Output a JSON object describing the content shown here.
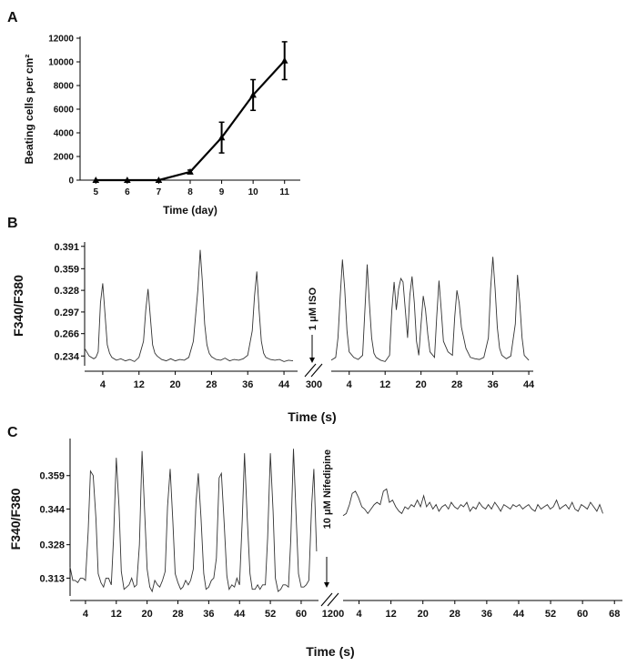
{
  "chart_data": [
    {
      "panel": "A",
      "type": "line",
      "xlabel": "Time (day)",
      "ylabel": "Beating cells per cm²",
      "x": [
        5,
        6,
        7,
        8,
        9,
        10,
        11
      ],
      "series": [
        {
          "values": [
            0,
            0,
            0,
            700,
            3600,
            7200,
            10100
          ],
          "error": [
            0,
            0,
            0,
            150,
            1300,
            1300,
            1600
          ]
        }
      ],
      "xticks": [
        "5",
        "6",
        "7",
        "8",
        "9",
        "10",
        "11"
      ],
      "yticks": [
        "0",
        "2000",
        "4000",
        "6000",
        "8000",
        "10000",
        "12000"
      ],
      "ylim": [
        0,
        12000
      ],
      "xlim": [
        4.5,
        11.5
      ],
      "grid": false
    },
    {
      "panel": "B",
      "type": "line",
      "xlabel": "Time (s)",
      "ylabel": "F340/F380",
      "yticks": [
        "0.234",
        "0.266",
        "0.297",
        "0.328",
        "0.359",
        "0.391"
      ],
      "ylim": [
        0.22,
        0.392
      ],
      "annotation": "1 μM ISO",
      "break_label": "300",
      "segments": [
        {
          "xlim": [
            0,
            47
          ],
          "xticks": [
            "4",
            "12",
            "20",
            "28",
            "36",
            "44"
          ],
          "x": [
            0,
            1,
            2,
            2.5,
            3,
            3.5,
            4,
            5,
            5.5,
            6,
            7,
            8,
            9,
            10,
            11,
            12,
            13,
            13.5,
            14,
            14.5,
            15,
            15.5,
            16,
            17,
            18,
            19,
            20,
            21,
            22,
            23,
            24,
            25,
            25.5,
            26,
            26.5,
            27,
            27.5,
            28,
            29,
            30,
            31,
            32,
            33,
            34,
            35,
            36,
            37,
            37.5,
            38,
            38.5,
            39,
            39.5,
            40,
            41,
            42,
            43,
            44,
            45,
            46
          ],
          "values": [
            0.245,
            0.234,
            0.23,
            0.232,
            0.24,
            0.31,
            0.338,
            0.25,
            0.238,
            0.232,
            0.228,
            0.23,
            0.227,
            0.229,
            0.226,
            0.232,
            0.255,
            0.3,
            0.33,
            0.29,
            0.25,
            0.238,
            0.234,
            0.229,
            0.227,
            0.23,
            0.227,
            0.229,
            0.228,
            0.232,
            0.255,
            0.33,
            0.386,
            0.34,
            0.28,
            0.25,
            0.238,
            0.233,
            0.229,
            0.228,
            0.231,
            0.227,
            0.229,
            0.228,
            0.23,
            0.235,
            0.27,
            0.32,
            0.355,
            0.3,
            0.255,
            0.238,
            0.232,
            0.229,
            0.228,
            0.229,
            0.226,
            0.228,
            0.227
          ]
        },
        {
          "xlim": [
            0,
            45
          ],
          "xticks": [
            "4",
            "12",
            "20",
            "28",
            "36",
            "44"
          ],
          "x": [
            0,
            1,
            1.5,
            2,
            2.5,
            3,
            3.5,
            4,
            5,
            6,
            7,
            7.5,
            8,
            8.5,
            9,
            9.5,
            10,
            11,
            12,
            13,
            13.5,
            14,
            14.5,
            15,
            15.5,
            16,
            16.5,
            17,
            17.5,
            18,
            18.5,
            19,
            19.5,
            20,
            20.5,
            21,
            21.5,
            22,
            23,
            23.5,
            24,
            24.5,
            25,
            26,
            27,
            27.5,
            28,
            28.5,
            29,
            30,
            31,
            32,
            33,
            34,
            35,
            35.5,
            36,
            36.5,
            37,
            37.5,
            38,
            39,
            40,
            41,
            41.5,
            42,
            42.5,
            43,
            44
          ],
          "values": [
            0.228,
            0.232,
            0.26,
            0.32,
            0.372,
            0.33,
            0.27,
            0.24,
            0.232,
            0.229,
            0.235,
            0.3,
            0.365,
            0.31,
            0.26,
            0.238,
            0.232,
            0.228,
            0.226,
            0.235,
            0.3,
            0.34,
            0.3,
            0.33,
            0.345,
            0.34,
            0.3,
            0.26,
            0.32,
            0.348,
            0.31,
            0.255,
            0.235,
            0.28,
            0.32,
            0.3,
            0.265,
            0.24,
            0.232,
            0.29,
            0.342,
            0.3,
            0.255,
            0.24,
            0.235,
            0.29,
            0.328,
            0.31,
            0.275,
            0.245,
            0.232,
            0.23,
            0.229,
            0.232,
            0.26,
            0.33,
            0.376,
            0.33,
            0.275,
            0.245,
            0.235,
            0.23,
            0.234,
            0.28,
            0.35,
            0.31,
            0.26,
            0.235,
            0.228
          ]
        }
      ]
    },
    {
      "panel": "C",
      "type": "line",
      "xlabel": "Time (s)",
      "ylabel": "F340/F380",
      "yticks": [
        "0.313",
        "0.328",
        "0.344",
        "0.359"
      ],
      "ylim": [
        0.305,
        0.374
      ],
      "annotation": "10 μM Nifedipine",
      "break_label": "1200",
      "segments": [
        {
          "xlim": [
            0,
            64.5
          ],
          "xticks": [
            "4",
            "12",
            "20",
            "28",
            "36",
            "44",
            "52",
            "60"
          ],
          "x": [
            0,
            0.7,
            1.3,
            2,
            2.7,
            3.3,
            4,
            4.7,
            5.3,
            6,
            6.7,
            7.3,
            8,
            8.7,
            9.3,
            10,
            10.7,
            11.3,
            12,
            12.7,
            13.3,
            14,
            14.7,
            15.3,
            16,
            16.7,
            17.3,
            18,
            18.7,
            19.3,
            20,
            20.7,
            21.3,
            22,
            22.7,
            23.3,
            24,
            24.7,
            25.3,
            26,
            26.7,
            27.3,
            28,
            28.7,
            29.3,
            30,
            30.7,
            31.3,
            32,
            32.7,
            33.3,
            34,
            34.7,
            35.3,
            36,
            36.7,
            37.3,
            38,
            38.7,
            39.3,
            40,
            40.7,
            41.3,
            42,
            42.7,
            43.3,
            44,
            44.7,
            45.3,
            46,
            46.7,
            47.3,
            48,
            48.7,
            49.3,
            50,
            50.7,
            51.3,
            52,
            52.7,
            53.3,
            54,
            54.7,
            55.3,
            56,
            56.7,
            57.3,
            58,
            58.7,
            59.3,
            60,
            60.7,
            61.3,
            62,
            62.7,
            63.3,
            64
          ],
          "values": [
            0.318,
            0.312,
            0.312,
            0.311,
            0.313,
            0.313,
            0.312,
            0.334,
            0.361,
            0.359,
            0.34,
            0.315,
            0.311,
            0.309,
            0.313,
            0.313,
            0.31,
            0.331,
            0.367,
            0.345,
            0.316,
            0.308,
            0.309,
            0.31,
            0.313,
            0.309,
            0.31,
            0.328,
            0.37,
            0.345,
            0.317,
            0.309,
            0.307,
            0.312,
            0.31,
            0.309,
            0.312,
            0.316,
            0.345,
            0.362,
            0.338,
            0.315,
            0.311,
            0.308,
            0.309,
            0.312,
            0.31,
            0.312,
            0.317,
            0.347,
            0.36,
            0.34,
            0.315,
            0.308,
            0.309,
            0.312,
            0.313,
            0.322,
            0.358,
            0.36,
            0.338,
            0.314,
            0.308,
            0.31,
            0.309,
            0.313,
            0.31,
            0.339,
            0.369,
            0.34,
            0.315,
            0.308,
            0.308,
            0.31,
            0.308,
            0.31,
            0.31,
            0.331,
            0.369,
            0.343,
            0.313,
            0.307,
            0.308,
            0.31,
            0.31,
            0.309,
            0.33,
            0.371,
            0.34,
            0.315,
            0.309,
            0.309,
            0.31,
            0.312,
            0.345,
            0.362,
            0.325
          ]
        },
        {
          "xlim": [
            0,
            70
          ],
          "xticks": [
            "4",
            "12",
            "20",
            "28",
            "36",
            "44",
            "52",
            "60",
            "68"
          ],
          "x": [
            0,
            0.8,
            1.6,
            2.3,
            3.1,
            3.9,
            4.7,
            5.4,
            6.2,
            7,
            7.8,
            8.5,
            9.3,
            10.1,
            10.9,
            11.6,
            12.4,
            13.2,
            14,
            14.7,
            15.5,
            16.3,
            17.1,
            17.8,
            18.6,
            19.4,
            20.2,
            20.9,
            21.7,
            22.5,
            23.3,
            24,
            24.8,
            25.6,
            26.4,
            27.1,
            27.9,
            28.7,
            29.5,
            30.2,
            31,
            31.8,
            32.6,
            33.3,
            34.1,
            34.9,
            35.7,
            36.4,
            37.2,
            38,
            38.8,
            39.5,
            40.3,
            41.1,
            41.9,
            42.6,
            43.4,
            44.2,
            45,
            45.7,
            46.5,
            47.3,
            48.1,
            48.8,
            49.6,
            50.4,
            51.2,
            51.9,
            52.7,
            53.5,
            54.3,
            55,
            55.8,
            56.6,
            57.4,
            58.1,
            58.9,
            59.7,
            60.5,
            61.2,
            62,
            62.8,
            63.6,
            64.3,
            65.1
          ],
          "values": [
            0.341,
            0.342,
            0.346,
            0.351,
            0.352,
            0.349,
            0.345,
            0.344,
            0.342,
            0.344,
            0.346,
            0.347,
            0.346,
            0.352,
            0.353,
            0.347,
            0.348,
            0.345,
            0.343,
            0.342,
            0.345,
            0.344,
            0.346,
            0.345,
            0.348,
            0.345,
            0.35,
            0.345,
            0.347,
            0.344,
            0.346,
            0.343,
            0.345,
            0.346,
            0.344,
            0.347,
            0.345,
            0.344,
            0.346,
            0.345,
            0.347,
            0.343,
            0.345,
            0.344,
            0.347,
            0.345,
            0.344,
            0.346,
            0.344,
            0.347,
            0.345,
            0.343,
            0.346,
            0.345,
            0.344,
            0.346,
            0.345,
            0.346,
            0.344,
            0.345,
            0.346,
            0.344,
            0.343,
            0.346,
            0.344,
            0.345,
            0.346,
            0.344,
            0.345,
            0.348,
            0.344,
            0.345,
            0.346,
            0.344,
            0.347,
            0.344,
            0.343,
            0.346,
            0.345,
            0.344,
            0.347,
            0.345,
            0.343,
            0.346,
            0.342
          ]
        }
      ]
    }
  ]
}
